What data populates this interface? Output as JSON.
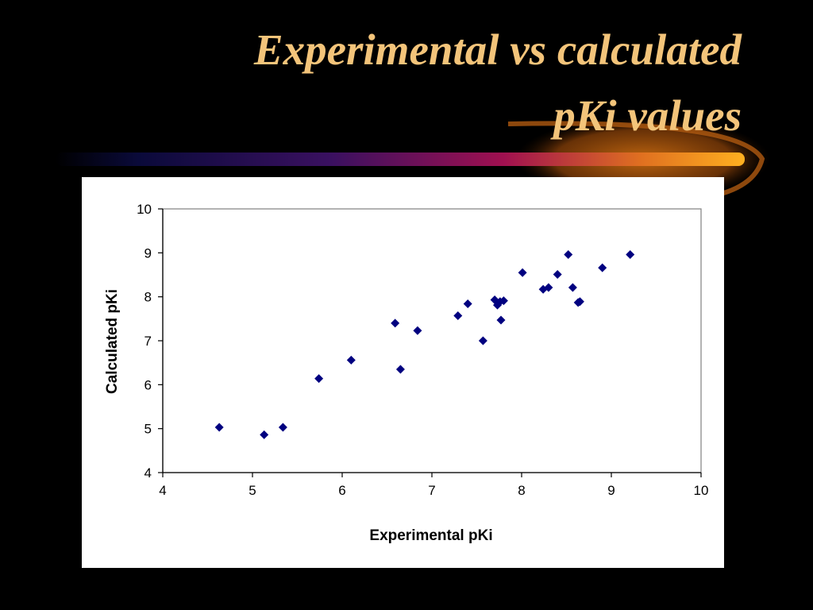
{
  "slide": {
    "title_line_1": "Experimental vs calculated",
    "title_line_2": "pKi values",
    "title_color": "#f3c47a",
    "background_color": "#000000"
  },
  "decoration": {
    "swoosh_colors": [
      "#0a0a3a",
      "#3a1060",
      "#a01050",
      "#e07020",
      "#ffb020"
    ]
  },
  "chart_data": {
    "type": "scatter",
    "title": "",
    "xlabel": "Experimental pKi",
    "ylabel": "Calculated pKi",
    "xlim": [
      4,
      10
    ],
    "ylim": [
      4,
      10
    ],
    "xticks": [
      4,
      5,
      6,
      7,
      8,
      9,
      10
    ],
    "yticks": [
      4,
      5,
      6,
      7,
      8,
      9,
      10
    ],
    "grid": false,
    "legend": "none",
    "marker": "diamond",
    "marker_color": "#000080",
    "series": [
      {
        "x": [
          4.63,
          5.13,
          5.34,
          5.74,
          6.1,
          6.59,
          6.65,
          6.84,
          7.29,
          7.4,
          7.57,
          7.7,
          7.73,
          7.76,
          7.77,
          7.8,
          8.01,
          8.24,
          8.3,
          8.4,
          8.52,
          8.57,
          8.63,
          8.65,
          8.9,
          9.21
        ],
        "y": [
          5.03,
          4.86,
          5.03,
          6.14,
          6.56,
          7.4,
          6.35,
          7.23,
          7.57,
          7.84,
          7.0,
          7.93,
          7.81,
          7.89,
          7.47,
          7.91,
          8.55,
          8.17,
          8.21,
          8.51,
          8.96,
          8.21,
          7.87,
          7.89,
          8.66,
          8.96
        ]
      }
    ]
  }
}
